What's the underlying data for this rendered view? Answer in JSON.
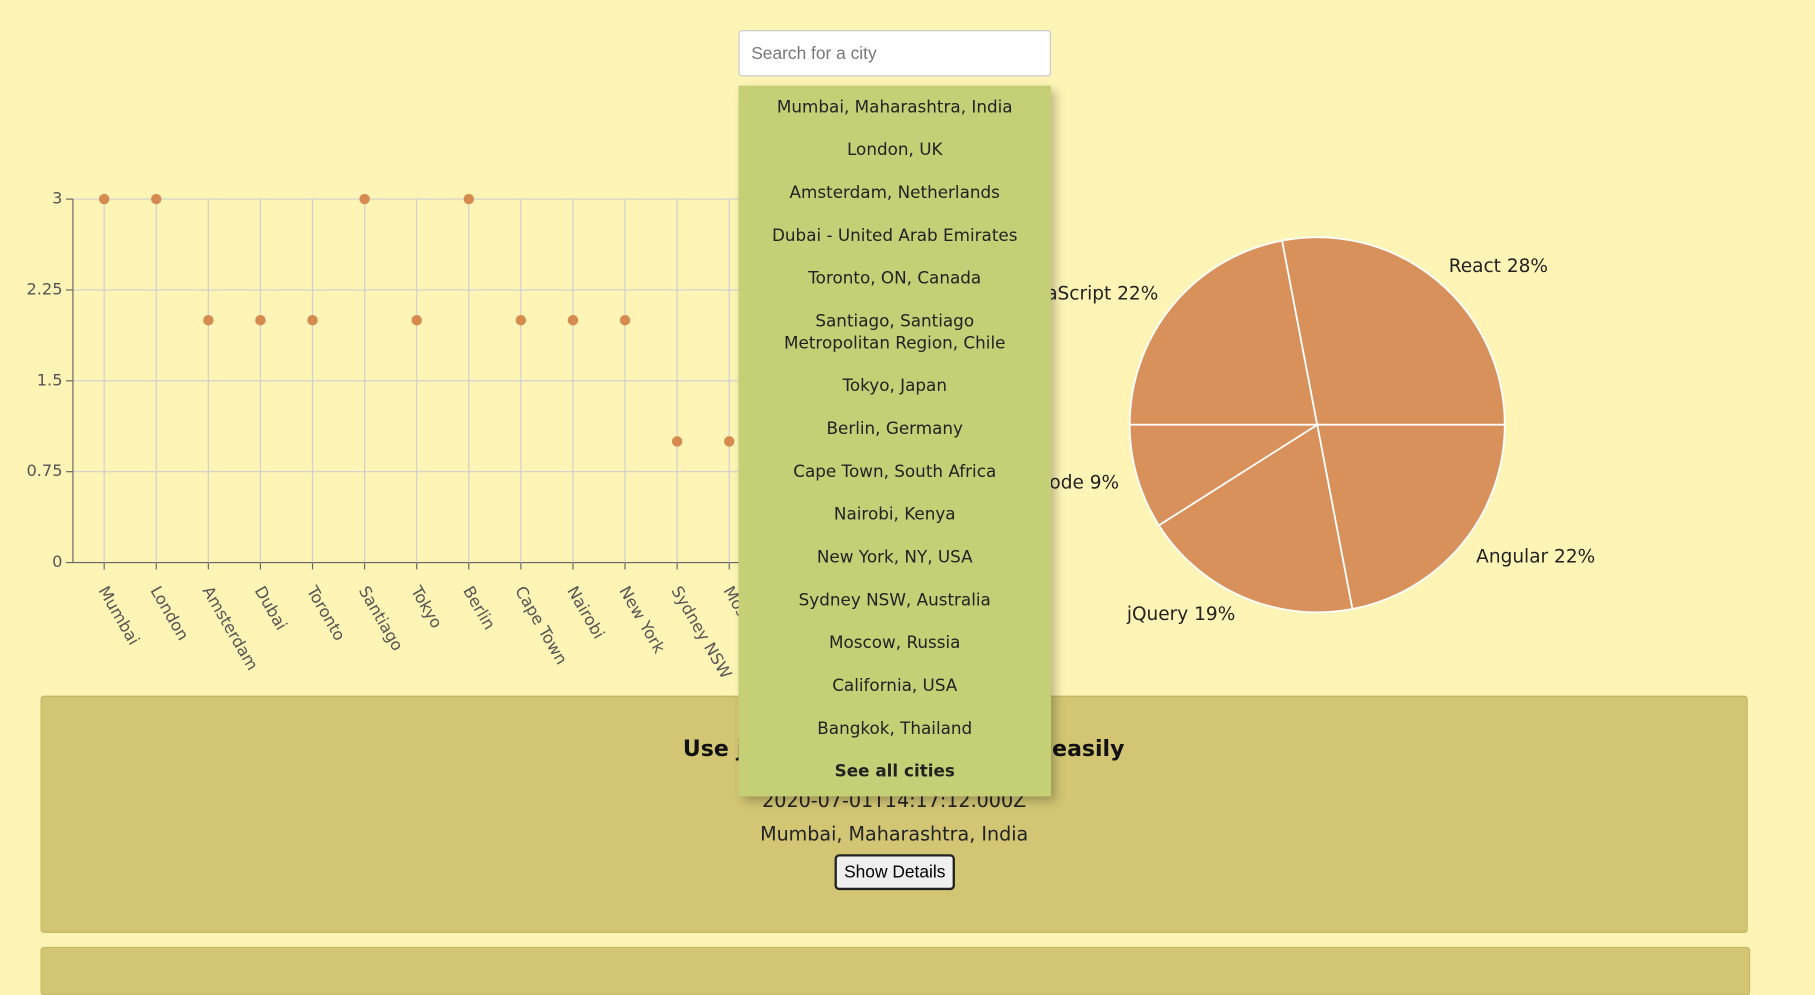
{
  "search": {
    "placeholder": "Search for a city"
  },
  "dropdown": {
    "items": [
      "Mumbai, Maharashtra, India",
      "London, UK",
      "Amsterdam, Netherlands",
      "Dubai - United Arab Emirates",
      "Toronto, ON, Canada",
      "Santiago, Santiago Metropolitan Region, Chile",
      "Tokyo, Japan",
      "Berlin, Germany",
      "Cape Town, South Africa",
      "Nairobi, Kenya",
      "New York, NY, USA",
      "Sydney NSW, Australia",
      "Moscow, Russia",
      "California, USA",
      "Bangkok, Thailand"
    ],
    "footer": "See all cities"
  },
  "chart_data": [
    {
      "type": "scatter",
      "categories": [
        "Mumbai",
        "London",
        "Amsterdam",
        "Dubai",
        "Toronto",
        "Santiago",
        "Tokyo",
        "Berlin",
        "Cape Town",
        "Nairobi",
        "New York",
        "Sydney NSW",
        "Moscow"
      ],
      "values": [
        3,
        3,
        2,
        2,
        2,
        3,
        2,
        3,
        2,
        2,
        2,
        1,
        1
      ],
      "color": "#d58b4f",
      "ylim": [
        0,
        3
      ],
      "yticks": [
        0,
        0.75,
        1.5,
        2.25,
        3
      ],
      "grid": true
    },
    {
      "type": "pie",
      "categories": [
        "JavaScript",
        "React",
        "Angular",
        "jQuery",
        "Node"
      ],
      "values": [
        22,
        28,
        22,
        19,
        9
      ],
      "value_labels": [
        "22%",
        "28%",
        "22%",
        "19%",
        "9%"
      ],
      "color": "#d9915b"
    }
  ],
  "card": {
    "title_start": "Use j",
    "title_end": "easily",
    "timestamp": "2020-07-01T14:17:12.000Z",
    "location": "Mumbai, Maharashtra, India",
    "button": "Show Details"
  }
}
